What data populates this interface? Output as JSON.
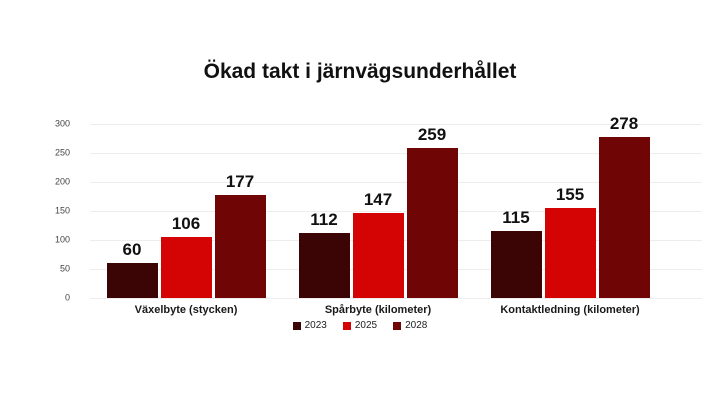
{
  "page": {
    "background": "#ffffff"
  },
  "chart_data": {
    "type": "bar",
    "title": "Ökad takt i järnvägsunderhållet",
    "categories": [
      "Växelbyte (stycken)",
      "Spårbyte (kilometer)",
      "Kontaktledning (kilometer)"
    ],
    "series": [
      {
        "name": "2023",
        "color": "#3a0504",
        "values": [
          60,
          112,
          115
        ]
      },
      {
        "name": "2025",
        "color": "#d50404",
        "values": [
          106,
          147,
          155
        ]
      },
      {
        "name": "2028",
        "color": "#6f0505",
        "values": [
          177,
          259,
          278
        ]
      }
    ],
    "ylim": [
      0,
      300
    ],
    "yticks": [
      0,
      50,
      100,
      150,
      200,
      250,
      300
    ],
    "grid": true,
    "gridline_color": "#ededed",
    "value_labels": true,
    "legend_position": "bottom",
    "xlabel": "",
    "ylabel": ""
  }
}
